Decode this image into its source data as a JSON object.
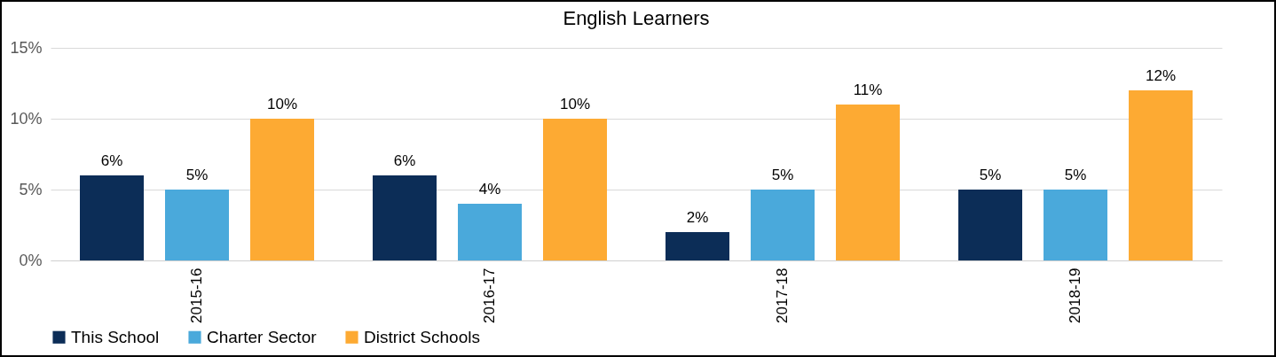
{
  "chart_data": {
    "type": "bar",
    "title": "English Learners",
    "categories": [
      "2015-16",
      "2016-17",
      "2017-18",
      "2018-19"
    ],
    "series": [
      {
        "name": "This School",
        "color": "#0c2d57",
        "values": [
          6,
          6,
          2,
          5
        ],
        "value_labels": [
          "6%",
          "6%",
          "2%",
          "5%"
        ]
      },
      {
        "name": "Charter Sector",
        "color": "#4aa9db",
        "values": [
          5,
          4,
          5,
          5
        ],
        "value_labels": [
          "5%",
          "4%",
          "5%",
          "5%"
        ]
      },
      {
        "name": "District Schools",
        "color": "#fdaa33",
        "values": [
          10,
          10,
          11,
          12
        ],
        "value_labels": [
          "10%",
          "10%",
          "11%",
          "12%"
        ]
      }
    ],
    "ylim": [
      0,
      15
    ],
    "yticks": [
      {
        "value": 0,
        "label": "0%"
      },
      {
        "value": 5,
        "label": "5%"
      },
      {
        "value": 10,
        "label": "10%"
      },
      {
        "value": 15,
        "label": "15%"
      }
    ],
    "grid": "y",
    "legend": "bottom"
  }
}
